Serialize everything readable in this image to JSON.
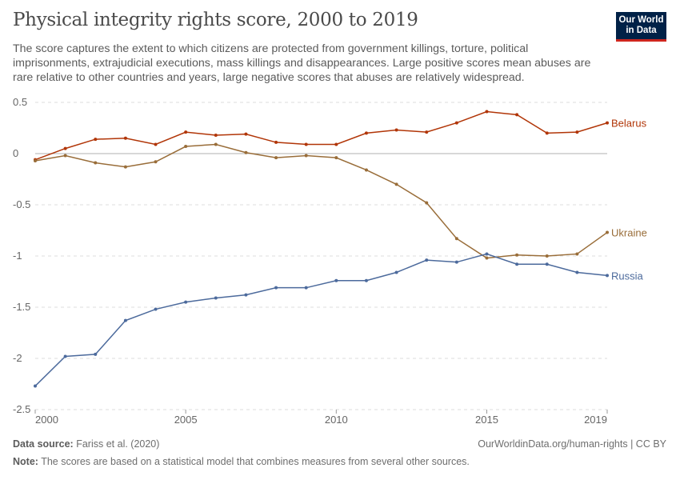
{
  "header": {
    "title": "Physical integrity rights score, 2000 to 2019",
    "subtitle": "The score captures the extent to which citizens are protected from government killings, torture, political imprisonments, extrajudicial executions, mass killings and disappearances. Large positive scores mean abuses are rare relative to other countries and years, large negative scores that abuses are relatively widespread.",
    "logo": "Our World in Data"
  },
  "footer": {
    "source_label": "Data source:",
    "source": "Fariss et al. (2020)",
    "url": "OurWorldinData.org/human-rights | CC BY",
    "note_label": "Note:",
    "note": "The scores are based on a statistical model that combines measures from several other sources."
  },
  "chart_data": {
    "type": "line",
    "x": [
      2000,
      2001,
      2002,
      2003,
      2004,
      2005,
      2006,
      2007,
      2008,
      2009,
      2010,
      2011,
      2012,
      2013,
      2014,
      2015,
      2016,
      2017,
      2018,
      2019
    ],
    "xticks": [
      2000,
      2005,
      2010,
      2015,
      2019
    ],
    "yticks": [
      0.5,
      0,
      -0.5,
      -1,
      -1.5,
      -2,
      -2.5
    ],
    "ylim": [
      -2.5,
      0.5
    ],
    "grid": "horizontal dashed",
    "legend": "inline labels at line ends",
    "series": [
      {
        "name": "Belarus",
        "color": "#b13507",
        "values": [
          -0.06,
          0.05,
          0.14,
          0.15,
          0.09,
          0.21,
          0.18,
          0.19,
          0.11,
          0.09,
          0.09,
          0.2,
          0.23,
          0.21,
          0.3,
          0.41,
          0.38,
          0.2,
          0.21,
          0.3
        ]
      },
      {
        "name": "Ukraine",
        "color": "#996d39",
        "values": [
          -0.07,
          -0.02,
          -0.09,
          -0.13,
          -0.08,
          0.07,
          0.09,
          0.01,
          -0.04,
          -0.02,
          -0.04,
          -0.16,
          -0.3,
          -0.48,
          -0.83,
          -1.02,
          -0.99,
          -1.0,
          -0.98,
          -0.77
        ]
      },
      {
        "name": "Russia",
        "color": "#4c6a9c",
        "values": [
          -2.27,
          -1.98,
          -1.96,
          -1.63,
          -1.52,
          -1.45,
          -1.41,
          -1.38,
          -1.31,
          -1.31,
          -1.24,
          -1.24,
          -1.16,
          -1.04,
          -1.06,
          -0.98,
          -1.08,
          -1.08,
          -1.16,
          -1.19
        ]
      }
    ]
  }
}
